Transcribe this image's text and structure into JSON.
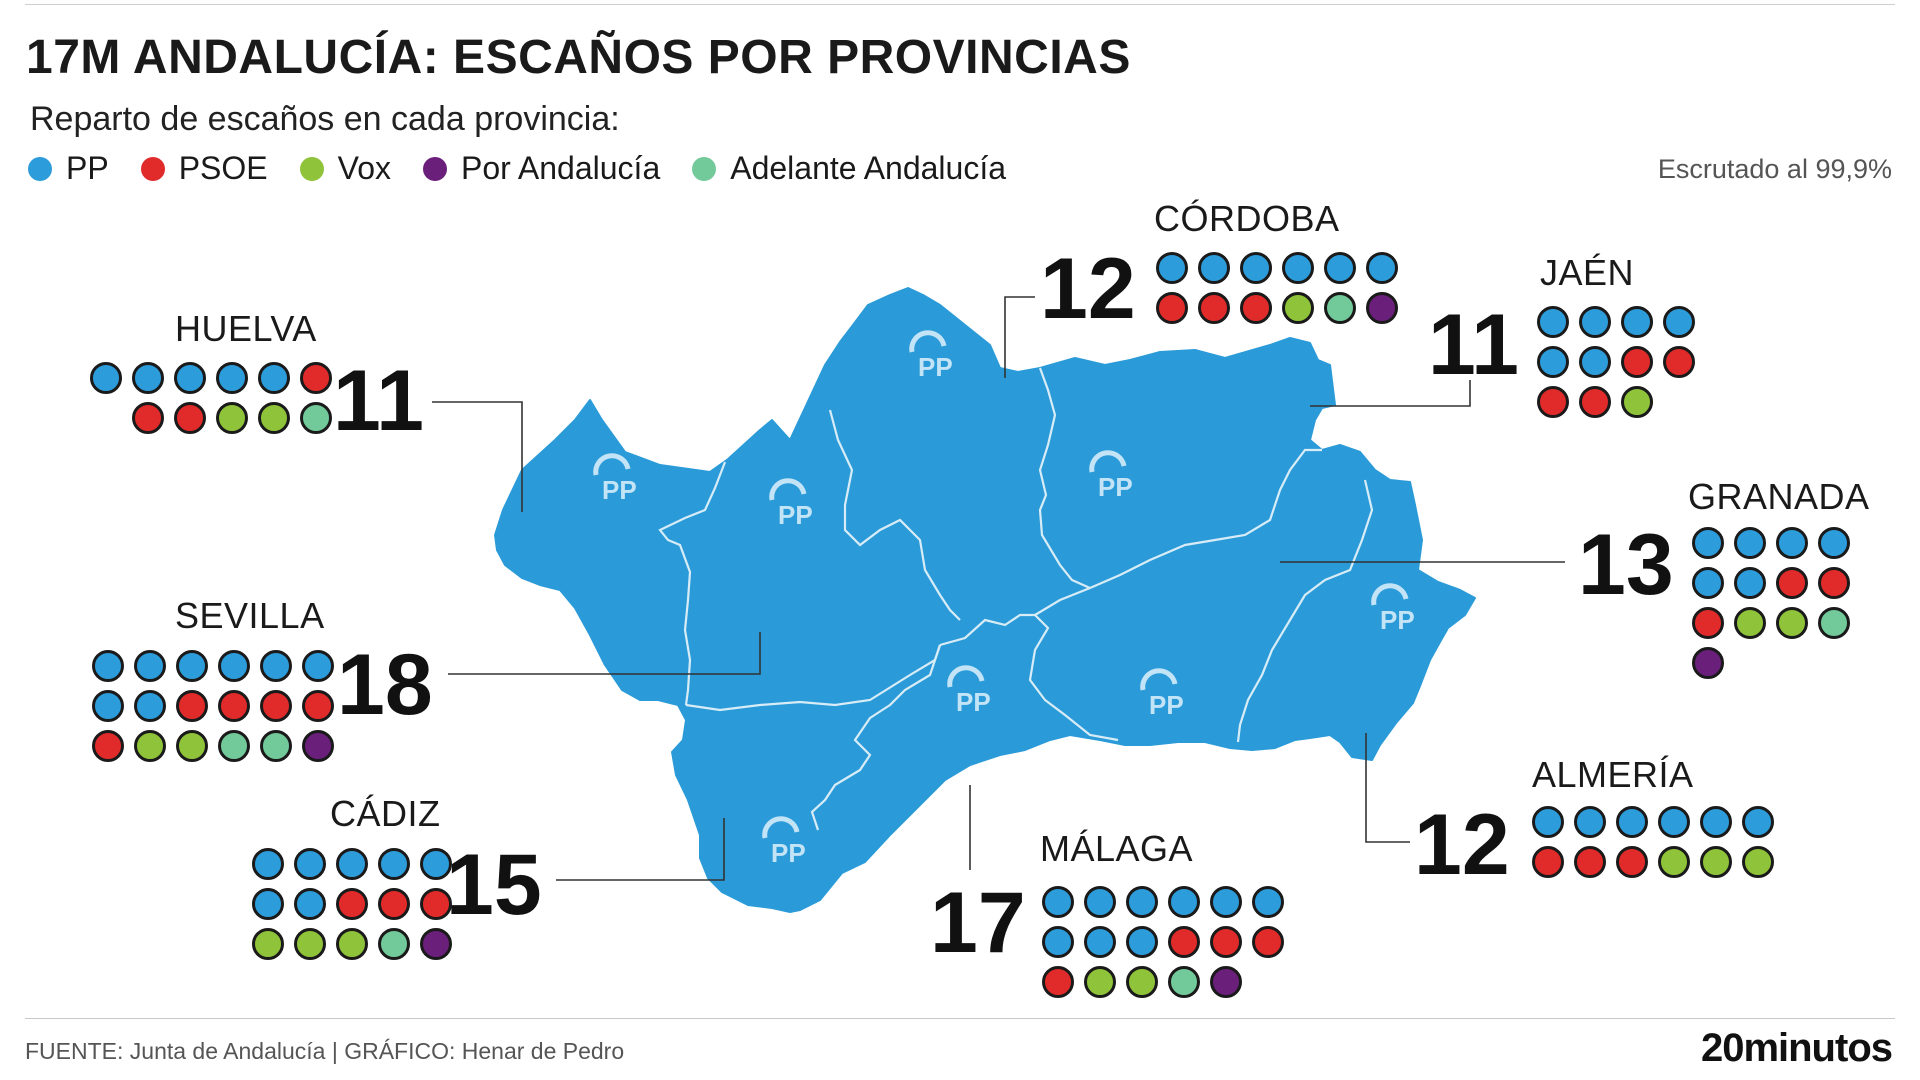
{
  "title": "17M ANDALUCÍA: ESCAÑOS POR PROVINCIAS",
  "subtitle": "Reparto de escaños en cada provincia:",
  "status": "Escrutado al 99,9%",
  "parties": [
    {
      "name": "PP",
      "color": "#2d9cdb"
    },
    {
      "name": "PSOE",
      "color": "#e12b2b"
    },
    {
      "name": "Vox",
      "color": "#8fc43a"
    },
    {
      "name": "Por Andalucía",
      "color": "#6a1f7a"
    },
    {
      "name": "Adelante Andalucía",
      "color": "#72c99a"
    }
  ],
  "map_logo": "PP",
  "provinces": [
    {
      "name": "HUELVA",
      "seats": "11",
      "pp": 5,
      "psoe": 3,
      "vox": 2,
      "por_andalucia": 0,
      "adelante": 1
    },
    {
      "name": "SEVILLA",
      "seats": "18",
      "pp": 8,
      "psoe": 5,
      "vox": 2,
      "por_andalucia": 1,
      "adelante": 2
    },
    {
      "name": "CÁDIZ",
      "seats": "15",
      "pp": 7,
      "psoe": 3,
      "vox": 3,
      "por_andalucia": 1,
      "adelante": 1
    },
    {
      "name": "CÓRDOBA",
      "seats": "12",
      "pp": 6,
      "psoe": 3,
      "vox": 1,
      "por_andalucia": 1,
      "adelante": 1
    },
    {
      "name": "MÁLAGA",
      "seats": "17",
      "pp": 9,
      "psoe": 4,
      "vox": 2,
      "por_andalucia": 1,
      "adelante": 1
    },
    {
      "name": "JAÉN",
      "seats": "11",
      "pp": 6,
      "psoe": 4,
      "vox": 1,
      "por_andalucia": 0,
      "adelante": 0
    },
    {
      "name": "GRANADA",
      "seats": "13",
      "pp": 6,
      "psoe": 3,
      "vox": 2,
      "por_andalucia": 1,
      "adelante": 1
    },
    {
      "name": "ALMERÍA",
      "seats": "12",
      "pp": 6,
      "psoe": 3,
      "vox": 3,
      "por_andalucia": 0,
      "adelante": 0
    }
  ],
  "footer": "FUENTE: Junta de Andalucía  |  GRÁFICO: Henar de Pedro",
  "brand": "20minutos"
}
